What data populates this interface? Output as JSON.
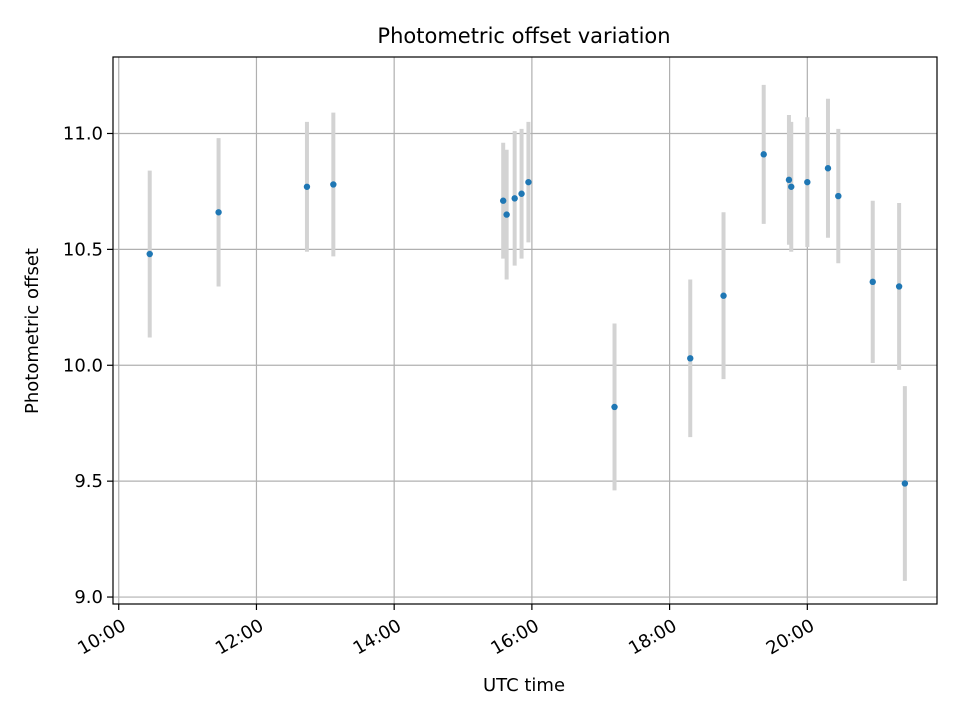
{
  "chart_data": {
    "type": "scatter",
    "title": "Photometric offset variation",
    "xlabel": "UTC time",
    "ylabel": "Photometric offset",
    "grid": true,
    "legend": "none",
    "colors": {
      "point": "#1f77b4",
      "errorbar": "#d3d3d3",
      "grid": "#b0b0b0"
    },
    "x_ticks": [
      "10:00",
      "12:00",
      "14:00",
      "16:00",
      "18:00",
      "20:00"
    ],
    "y_ticks": [
      "9.0",
      "9.5",
      "10.0",
      "10.5",
      "11.0"
    ],
    "xlim": [
      "09:55",
      "21:53"
    ],
    "ylim": [
      8.97,
      11.33
    ],
    "series": [
      {
        "points": [
          {
            "x": "10:27",
            "y": 10.48,
            "err": 0.36
          },
          {
            "x": "11:27",
            "y": 10.66,
            "err": 0.32
          },
          {
            "x": "12:44",
            "y": 10.77,
            "err": 0.28
          },
          {
            "x": "13:07",
            "y": 10.78,
            "err": 0.31
          },
          {
            "x": "15:35",
            "y": 10.71,
            "err": 0.25
          },
          {
            "x": "15:38",
            "y": 10.65,
            "err": 0.28
          },
          {
            "x": "15:45",
            "y": 10.72,
            "err": 0.29
          },
          {
            "x": "15:51",
            "y": 10.74,
            "err": 0.28
          },
          {
            "x": "15:57",
            "y": 10.79,
            "err": 0.26
          },
          {
            "x": "17:12",
            "y": 9.82,
            "err": 0.36
          },
          {
            "x": "18:18",
            "y": 10.03,
            "err": 0.34
          },
          {
            "x": "18:47",
            "y": 10.3,
            "err": 0.36
          },
          {
            "x": "19:22",
            "y": 10.91,
            "err": 0.3
          },
          {
            "x": "19:44",
            "y": 10.8,
            "err": 0.28
          },
          {
            "x": "19:46",
            "y": 10.77,
            "err": 0.28
          },
          {
            "x": "20:00",
            "y": 10.79,
            "err": 0.28
          },
          {
            "x": "20:18",
            "y": 10.85,
            "err": 0.3
          },
          {
            "x": "20:27",
            "y": 10.73,
            "err": 0.29
          },
          {
            "x": "20:57",
            "y": 10.36,
            "err": 0.35
          },
          {
            "x": "21:20",
            "y": 10.34,
            "err": 0.36
          },
          {
            "x": "21:25",
            "y": 9.49,
            "err": 0.42
          }
        ]
      }
    ]
  }
}
